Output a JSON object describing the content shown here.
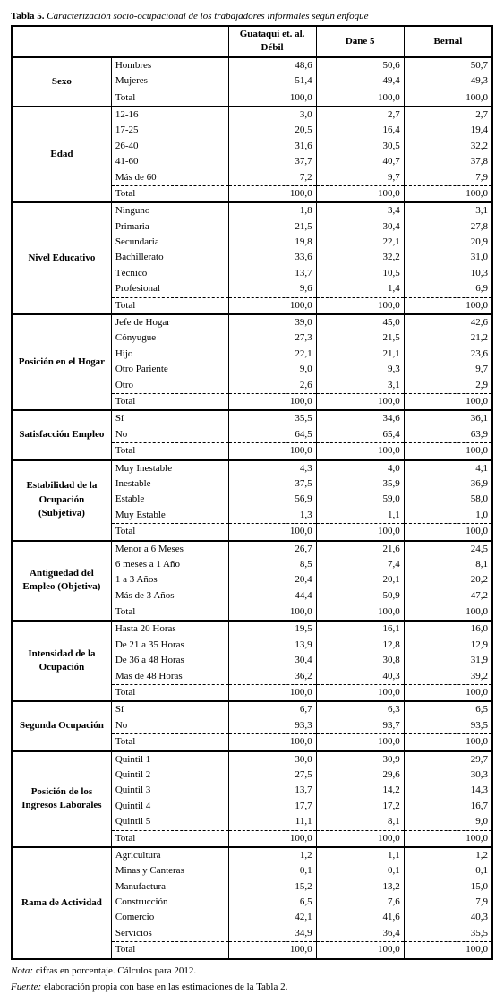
{
  "title_prefix": "Tabla 5.",
  "title_text": "Caracterización socio-ocupacional de los trabajadores informales  según enfoque",
  "columns": [
    "Guataquí et. al. Débil",
    "Dane 5",
    "Bernal"
  ],
  "groups": [
    {
      "name": "Sexo",
      "rows": [
        {
          "label": "Hombres",
          "vals": [
            "48,6",
            "50,6",
            "50,7"
          ]
        },
        {
          "label": "Mujeres",
          "vals": [
            "51,4",
            "49,4",
            "49,3"
          ],
          "dashed_after": true
        },
        {
          "label": "Total",
          "vals": [
            "100,0",
            "100,0",
            "100,0"
          ]
        }
      ]
    },
    {
      "name": "Edad",
      "rows": [
        {
          "label": "12-16",
          "vals": [
            "3,0",
            "2,7",
            "2,7"
          ]
        },
        {
          "label": "17-25",
          "vals": [
            "20,5",
            "16,4",
            "19,4"
          ]
        },
        {
          "label": "26-40",
          "vals": [
            "31,6",
            "30,5",
            "32,2"
          ]
        },
        {
          "label": "41-60",
          "vals": [
            "37,7",
            "40,7",
            "37,8"
          ]
        },
        {
          "label": "Más de 60",
          "vals": [
            "7,2",
            "9,7",
            "7,9"
          ],
          "dashed_after": true
        },
        {
          "label": "Total",
          "vals": [
            "100,0",
            "100,0",
            "100,0"
          ]
        }
      ]
    },
    {
      "name": "Nivel Educativo",
      "rows": [
        {
          "label": "Ninguno",
          "vals": [
            "1,8",
            "3,4",
            "3,1"
          ]
        },
        {
          "label": "Primaria",
          "vals": [
            "21,5",
            "30,4",
            "27,8"
          ]
        },
        {
          "label": "Secundaria",
          "vals": [
            "19,8",
            "22,1",
            "20,9"
          ]
        },
        {
          "label": "Bachillerato",
          "vals": [
            "33,6",
            "32,2",
            "31,0"
          ]
        },
        {
          "label": "Técnico",
          "vals": [
            "13,7",
            "10,5",
            "10,3"
          ]
        },
        {
          "label": "Profesional",
          "vals": [
            "9,6",
            "1,4",
            "6,9"
          ],
          "dashed_after": true
        },
        {
          "label": "Total",
          "vals": [
            "100,0",
            "100,0",
            "100,0"
          ]
        }
      ]
    },
    {
      "name": "Posición en el Hogar",
      "rows": [
        {
          "label": "Jefe de Hogar",
          "vals": [
            "39,0",
            "45,0",
            "42,6"
          ]
        },
        {
          "label": "Cónyugue",
          "vals": [
            "27,3",
            "21,5",
            "21,2"
          ]
        },
        {
          "label": "Hijo",
          "vals": [
            "22,1",
            "21,1",
            "23,6"
          ]
        },
        {
          "label": "Otro Pariente",
          "vals": [
            "9,0",
            "9,3",
            "9,7"
          ]
        },
        {
          "label": "Otro",
          "vals": [
            "2,6",
            "3,1",
            "2,9"
          ],
          "dashed_after": true
        },
        {
          "label": "Total",
          "vals": [
            "100,0",
            "100,0",
            "100,0"
          ]
        }
      ]
    },
    {
      "name": "Satisfacción Empleo",
      "rows": [
        {
          "label": "Sí",
          "vals": [
            "35,5",
            "34,6",
            "36,1"
          ]
        },
        {
          "label": "No",
          "vals": [
            "64,5",
            "65,4",
            "63,9"
          ],
          "dashed_after": true
        },
        {
          "label": "Total",
          "vals": [
            "100,0",
            "100,0",
            "100,0"
          ]
        }
      ]
    },
    {
      "name": "Estabilidad de la Ocupación (Subjetiva)",
      "rows": [
        {
          "label": "Muy Inestable",
          "vals": [
            "4,3",
            "4,0",
            "4,1"
          ]
        },
        {
          "label": "Inestable",
          "vals": [
            "37,5",
            "35,9",
            "36,9"
          ]
        },
        {
          "label": "Estable",
          "vals": [
            "56,9",
            "59,0",
            "58,0"
          ]
        },
        {
          "label": "Muy Estable",
          "vals": [
            "1,3",
            "1,1",
            "1,0"
          ],
          "dashed_after": true
        },
        {
          "label": "Total",
          "vals": [
            "100,0",
            "100,0",
            "100,0"
          ]
        }
      ]
    },
    {
      "name": "Antigüedad del Empleo (Objetiva)",
      "rows": [
        {
          "label": "Menor a 6 Meses",
          "vals": [
            "26,7",
            "21,6",
            "24,5"
          ]
        },
        {
          "label": "6 meses a 1 Año",
          "vals": [
            "8,5",
            "7,4",
            "8,1"
          ]
        },
        {
          "label": "1 a 3 Años",
          "vals": [
            "20,4",
            "20,1",
            "20,2"
          ]
        },
        {
          "label": "Más de 3 Años",
          "vals": [
            "44,4",
            "50,9",
            "47,2"
          ],
          "dashed_after": true
        },
        {
          "label": "Total",
          "vals": [
            "100,0",
            "100,0",
            "100,0"
          ]
        }
      ]
    },
    {
      "name": "Intensidad de la Ocupación",
      "rows": [
        {
          "label": "Hasta 20 Horas",
          "vals": [
            "19,5",
            "16,1",
            "16,0"
          ]
        },
        {
          "label": "De 21 a 35 Horas",
          "vals": [
            "13,9",
            "12,8",
            "12,9"
          ]
        },
        {
          "label": "De 36 a 48 Horas",
          "vals": [
            "30,4",
            "30,8",
            "31,9"
          ]
        },
        {
          "label": "Mas de 48 Horas",
          "vals": [
            "36,2",
            "40,3",
            "39,2"
          ],
          "dashed_after": true
        },
        {
          "label": "Total",
          "vals": [
            "100,0",
            "100,0",
            "100,0"
          ]
        }
      ]
    },
    {
      "name": "Segunda Ocupación",
      "rows": [
        {
          "label": "Sí",
          "vals": [
            "6,7",
            "6,3",
            "6,5"
          ]
        },
        {
          "label": "No",
          "vals": [
            "93,3",
            "93,7",
            "93,5"
          ],
          "dashed_after": true
        },
        {
          "label": "Total",
          "vals": [
            "100,0",
            "100,0",
            "100,0"
          ]
        }
      ]
    },
    {
      "name": "Posición de los Ingresos Laborales",
      "rows": [
        {
          "label": "Quintil 1",
          "vals": [
            "30,0",
            "30,9",
            "29,7"
          ]
        },
        {
          "label": "Quintil 2",
          "vals": [
            "27,5",
            "29,6",
            "30,3"
          ]
        },
        {
          "label": "Quintil 3",
          "vals": [
            "13,7",
            "14,2",
            "14,3"
          ]
        },
        {
          "label": "Quintil 4",
          "vals": [
            "17,7",
            "17,2",
            "16,7"
          ]
        },
        {
          "label": "Quintil 5",
          "vals": [
            "11,1",
            "8,1",
            "9,0"
          ],
          "dashed_after": true
        },
        {
          "label": "Total",
          "vals": [
            "100,0",
            "100,0",
            "100,0"
          ]
        }
      ]
    },
    {
      "name": "Rama de Actividad",
      "rows": [
        {
          "label": "Agricultura",
          "vals": [
            "1,2",
            "1,1",
            "1,2"
          ]
        },
        {
          "label": "Minas y Canteras",
          "vals": [
            "0,1",
            "0,1",
            "0,1"
          ]
        },
        {
          "label": "Manufactura",
          "vals": [
            "15,2",
            "13,2",
            "15,0"
          ]
        },
        {
          "label": "Construcción",
          "vals": [
            "6,5",
            "7,6",
            "7,9"
          ]
        },
        {
          "label": "Comercio",
          "vals": [
            "42,1",
            "41,6",
            "40,3"
          ]
        },
        {
          "label": "Servicios",
          "vals": [
            "34,9",
            "36,4",
            "35,5"
          ],
          "dashed_after": true
        },
        {
          "label": "Total",
          "vals": [
            "100,0",
            "100,0",
            "100,0"
          ]
        }
      ]
    }
  ],
  "note_label": "Nota:",
  "note_text": " cifras en porcentaje. Cálculos para 2012.",
  "source_label": "Fuente:",
  "source_text": " elaboración propia con base en las estimaciones de la Tabla 2."
}
